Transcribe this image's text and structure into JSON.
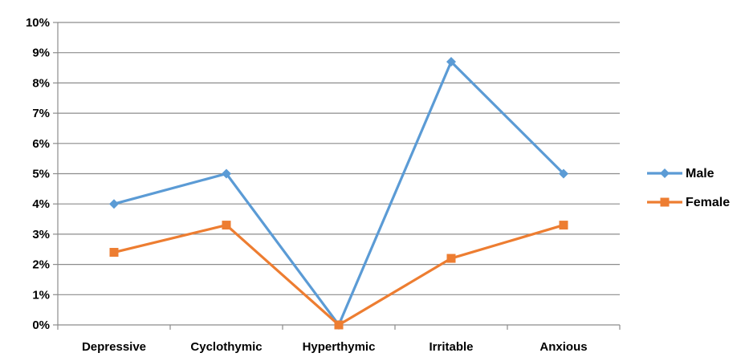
{
  "chart_data": {
    "type": "line",
    "categories": [
      "Depressive",
      "Cyclothymic",
      "Hyperthymic",
      "Irritable",
      "Anxious"
    ],
    "series": [
      {
        "name": "Male",
        "values": [
          4.0,
          5.0,
          0.0,
          8.7,
          5.0
        ],
        "color": "#5b9bd5",
        "marker": "diamond"
      },
      {
        "name": "Female",
        "values": [
          2.4,
          3.3,
          0.0,
          2.2,
          3.3
        ],
        "color": "#ed7d31",
        "marker": "square"
      }
    ],
    "yticks": [
      "0%",
      "1%",
      "2%",
      "3%",
      "4%",
      "5%",
      "6%",
      "7%",
      "8%",
      "9%",
      "10%"
    ],
    "ylim": [
      0,
      10
    ],
    "ylabel_unit": "%",
    "grid": true,
    "legend_position": "right"
  }
}
